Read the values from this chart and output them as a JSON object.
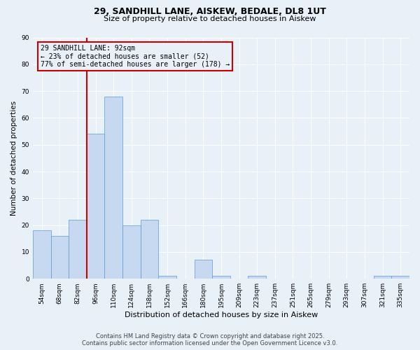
{
  "title1": "29, SANDHILL LANE, AISKEW, BEDALE, DL8 1UT",
  "title2": "Size of property relative to detached houses in Aiskew",
  "xlabel": "Distribution of detached houses by size in Aiskew",
  "ylabel": "Number of detached properties",
  "categories": [
    "54sqm",
    "68sqm",
    "82sqm",
    "96sqm",
    "110sqm",
    "124sqm",
    "138sqm",
    "152sqm",
    "166sqm",
    "180sqm",
    "195sqm",
    "209sqm",
    "223sqm",
    "237sqm",
    "251sqm",
    "265sqm",
    "279sqm",
    "293sqm",
    "307sqm",
    "321sqm",
    "335sqm"
  ],
  "values": [
    18,
    16,
    22,
    54,
    68,
    20,
    22,
    1,
    0,
    7,
    1,
    0,
    1,
    0,
    0,
    0,
    0,
    0,
    0,
    1,
    1
  ],
  "bar_color": "#c6d9f1",
  "bar_edge_color": "#5b9bd5",
  "vline_color": "#cc0000",
  "ylim": [
    0,
    90
  ],
  "yticks": [
    0,
    10,
    20,
    30,
    40,
    50,
    60,
    70,
    80,
    90
  ],
  "annotation_line1": "29 SANDHILL LANE: 92sqm",
  "annotation_line2": "← 23% of detached houses are smaller (52)",
  "annotation_line3": "77% of semi-detached houses are larger (178) →",
  "annotation_box_color": "#cc0000",
  "background_color": "#e8f0f8",
  "grid_color": "#ffffff",
  "footer_line1": "Contains HM Land Registry data © Crown copyright and database right 2025.",
  "footer_line2": "Contains public sector information licensed under the Open Government Licence v3.0."
}
